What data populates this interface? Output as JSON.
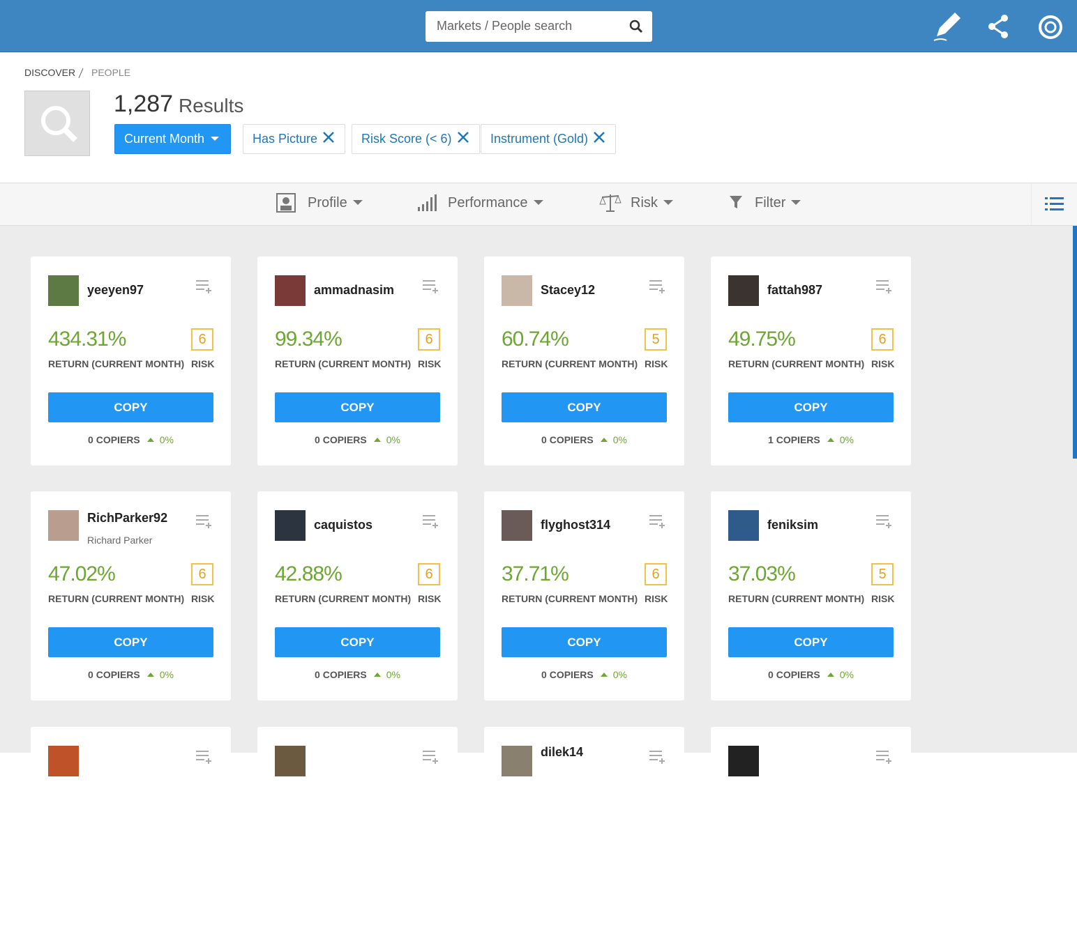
{
  "search": {
    "placeholder": "Markets / People search"
  },
  "breadcrumb": [
    "DISCOVER",
    "PEOPLE"
  ],
  "results": {
    "count": "1,287",
    "label": "Results"
  },
  "filters": [
    "Current Month",
    "Has Picture",
    "Risk Score (< 6)",
    "Instrument (Gold)"
  ],
  "toolbar": [
    "Profile",
    "Performance",
    "Risk",
    "Filter"
  ],
  "card_labels": {
    "return": "RETURN (CURRENT MONTH)",
    "risk": "RISK",
    "copy": "COPY",
    "copiers": "COPIERS"
  },
  "cards": [
    {
      "username": "yeeyen97",
      "return": "434.31%",
      "risk": 6,
      "copiers": 0,
      "change": "0%"
    },
    {
      "username": "ammadnasim",
      "return": "99.34%",
      "risk": 6,
      "copiers": 0,
      "change": "0%"
    },
    {
      "username": "Stacey12",
      "return": "60.74%",
      "risk": 5,
      "copiers": 0,
      "change": "0%"
    },
    {
      "username": "fattah987",
      "return": "49.75%",
      "risk": 6,
      "copiers": 1,
      "change": "0%"
    },
    {
      "username": "RichParker92",
      "full_name": "Richard Parker",
      "return": "47.02%",
      "risk": 6,
      "copiers": 0,
      "change": "0%"
    },
    {
      "username": "caquistos",
      "return": "42.88%",
      "risk": 6,
      "copiers": 0,
      "change": "0%"
    },
    {
      "username": "flyghost314",
      "return": "37.71%",
      "risk": 6,
      "copiers": 0,
      "change": "0%"
    },
    {
      "username": "feniksim",
      "return": "37.03%",
      "risk": 5,
      "copiers": 0,
      "change": "0%"
    }
  ],
  "more_cards": [
    "dilek14"
  ]
}
